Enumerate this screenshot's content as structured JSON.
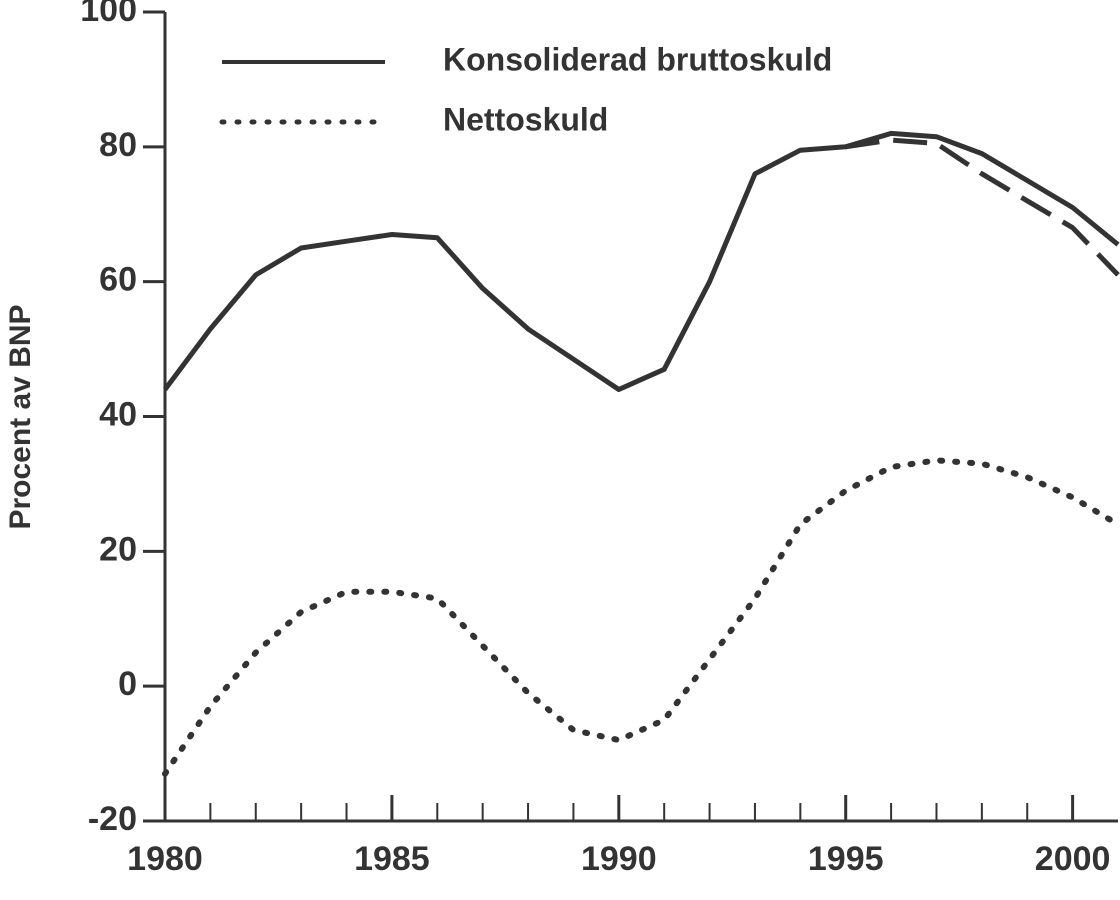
{
  "chart_data": {
    "type": "line",
    "y_label": "Procent av BNP",
    "x": [
      1980,
      1981,
      1982,
      1983,
      1984,
      1985,
      1986,
      1987,
      1988,
      1989,
      1990,
      1991,
      1992,
      1993,
      1994,
      1995,
      1996,
      1997,
      1998,
      1999,
      2000,
      2001
    ],
    "series": [
      {
        "name": "Konsoliderad bruttoskuld",
        "color": "#333333",
        "style": "solid",
        "values": [
          44,
          53,
          61,
          65,
          66,
          67,
          66.5,
          59,
          53,
          48.5,
          44,
          47,
          60,
          76,
          79.5,
          80,
          82,
          81.5,
          79,
          75,
          71,
          65.5
        ]
      },
      {
        "name": "Nettoskuld",
        "color": "#333333",
        "style": "dotted",
        "values": [
          -13,
          -3,
          5,
          11,
          14,
          14,
          13,
          6,
          -1,
          -6.5,
          -8,
          -5,
          4,
          13,
          24,
          29,
          32.5,
          33.5,
          33,
          31,
          28,
          24
        ]
      },
      {
        "color": "#333333",
        "style": "dashed",
        "values": [
          null,
          null,
          null,
          null,
          null,
          null,
          null,
          null,
          null,
          null,
          null,
          null,
          null,
          null,
          null,
          80,
          81,
          80.5,
          76,
          72,
          68,
          61
        ]
      }
    ],
    "xlim": [
      1980,
      2001
    ],
    "xticks": [
      1980,
      1985,
      1990,
      1995,
      2000
    ],
    "xminorticks": [
      1981,
      1982,
      1983,
      1984,
      1986,
      1987,
      1988,
      1989,
      1991,
      1992,
      1993,
      1994,
      1996,
      1997,
      1998,
      1999
    ],
    "ylim": [
      -20,
      100
    ],
    "yticks": [
      -20,
      0,
      20,
      40,
      60,
      80,
      100
    ],
    "legend": "top-left"
  }
}
